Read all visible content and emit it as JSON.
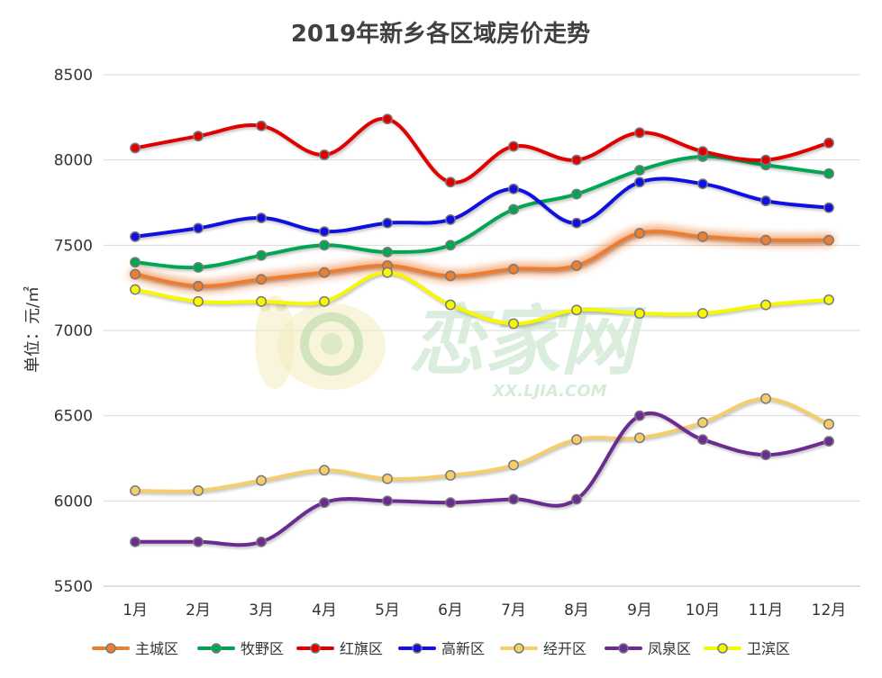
{
  "chart_data": {
    "type": "line",
    "title": "2019年新乡各区域房价走势",
    "ylabel": "单位：元/㎡",
    "xlabel": "",
    "ylim": [
      5500,
      8500
    ],
    "yticks": [
      5500,
      6000,
      6500,
      7000,
      7500,
      8000,
      8500
    ],
    "categories": [
      "1月",
      "2月",
      "3月",
      "4月",
      "5月",
      "6月",
      "7月",
      "8月",
      "9月",
      "10月",
      "11月",
      "12月"
    ],
    "grid": true,
    "smooth": true,
    "legend_position": "bottom",
    "highlighted_series": "主城区",
    "series": [
      {
        "name": "主城区",
        "color": "#ED7D31",
        "values": [
          7330,
          7260,
          7300,
          7340,
          7380,
          7320,
          7360,
          7380,
          7570,
          7550,
          7530,
          7530
        ]
      },
      {
        "name": "牧野区",
        "color": "#00A651",
        "values": [
          7400,
          7370,
          7440,
          7500,
          7460,
          7500,
          7710,
          7800,
          7940,
          8020,
          7970,
          7920
        ]
      },
      {
        "name": "红旗区",
        "color": "#E00000",
        "values": [
          8070,
          8140,
          8200,
          8030,
          8240,
          7870,
          8080,
          8000,
          8160,
          8050,
          8000,
          8100
        ]
      },
      {
        "name": "高新区",
        "color": "#1010E0",
        "values": [
          7550,
          7600,
          7660,
          7580,
          7630,
          7650,
          7830,
          7630,
          7870,
          7860,
          7760,
          7720
        ]
      },
      {
        "name": "经开区",
        "color": "#F5CE6C",
        "values": [
          6060,
          6060,
          6120,
          6180,
          6130,
          6150,
          6210,
          6360,
          6370,
          6460,
          6600,
          6450
        ]
      },
      {
        "name": "凤泉区",
        "color": "#6B2C91",
        "values": [
          5760,
          5760,
          5760,
          5990,
          6000,
          5990,
          6010,
          6010,
          6500,
          6360,
          6270,
          6350
        ]
      },
      {
        "name": "卫滨区",
        "color": "#F7F700",
        "values": [
          7240,
          7170,
          7170,
          7170,
          7340,
          7150,
          7040,
          7120,
          7100,
          7100,
          7150,
          7180
        ]
      }
    ]
  },
  "watermark": {
    "text": "恋家网",
    "url": "XX.LJIA.COM"
  }
}
